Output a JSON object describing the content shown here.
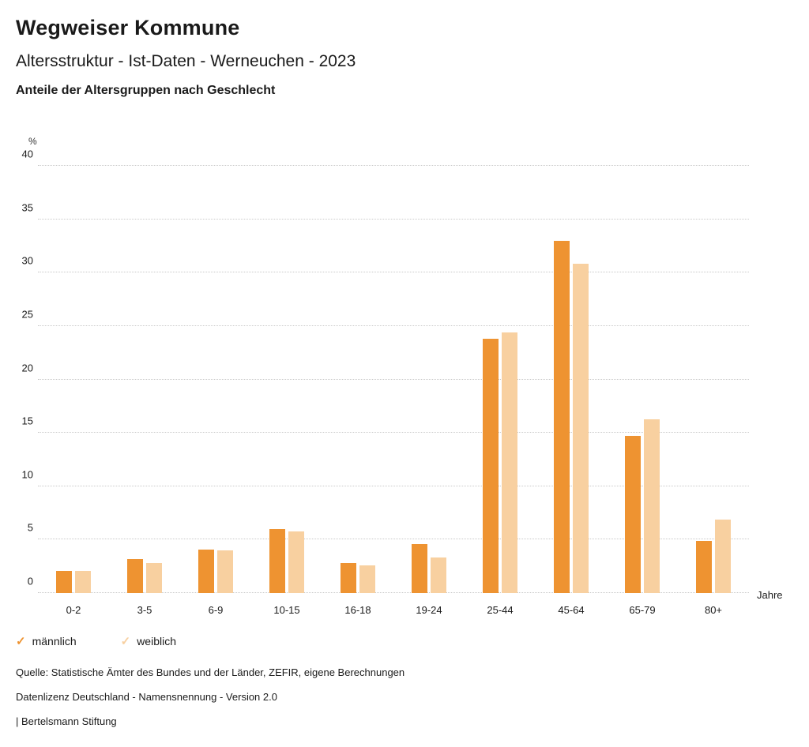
{
  "header": {
    "title": "Wegweiser Kommune",
    "subtitle": "Altersstruktur - Ist-Daten - Werneuchen - 2023",
    "chart_subtitle": "Anteile der Altersgruppen nach Geschlecht"
  },
  "chart_data": {
    "type": "bar",
    "title": "Anteile der Altersgruppen nach Geschlecht",
    "categories": [
      "0-2",
      "3-5",
      "6-9",
      "10-15",
      "16-18",
      "19-24",
      "25-44",
      "45-64",
      "65-79",
      "80+"
    ],
    "series": [
      {
        "name": "männlich",
        "color": "#EE9331",
        "values": [
          2.1,
          3.2,
          4.1,
          6.0,
          2.8,
          4.6,
          23.8,
          33.0,
          14.7,
          4.9
        ]
      },
      {
        "name": "weiblich",
        "color": "#F8D0A0",
        "values": [
          2.1,
          2.8,
          4.0,
          5.8,
          2.6,
          3.3,
          24.4,
          30.8,
          16.3,
          6.9
        ]
      }
    ],
    "xlabel": "Jahre",
    "ylabel": "%",
    "ylim": [
      0,
      40
    ],
    "ytick_step": 5,
    "grid": true,
    "legend_position": "bottom"
  },
  "axes": {
    "y_unit": "%",
    "x_unit": "Jahre"
  },
  "legend": {
    "check_glyph": "✓",
    "items": [
      {
        "label": "männlich",
        "color": "#EE9331"
      },
      {
        "label": "weiblich",
        "color": "#F8D0A0"
      }
    ]
  },
  "footer": {
    "source": "Quelle: Statistische Ämter des Bundes und der Länder, ZEFIR, eigene Berechnungen",
    "license": "Datenlizenz Deutschland - Namensnennung - Version 2.0",
    "attribution": "| Bertelsmann Stiftung"
  }
}
